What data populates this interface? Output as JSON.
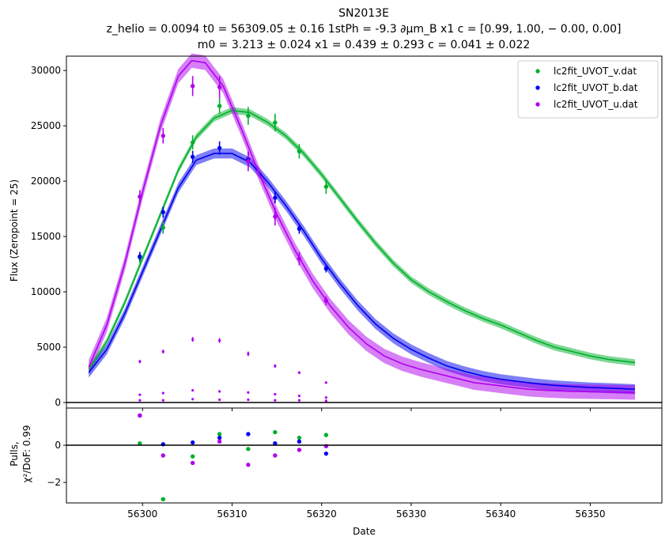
{
  "chart_data": [
    {
      "type": "line",
      "title_lines": [
        "SN2013E",
        "z_helio = 0.0094 t0 = 56309.05 ± 0.16 1stPh = -9.3 ∂μm_B x1 c = [0.99,  1.00,  − 0.00,  0.00]",
        "m0 = 3.213 ± 0.024 x1 = 0.439 ± 0.293 c = 0.041 ± 0.022"
      ],
      "ylabel": "Flux (Zeropoint = 25)",
      "xlim": [
        56291.5,
        56358
      ],
      "ylim": [
        -500,
        31300
      ],
      "yticks": [
        0,
        5000,
        10000,
        15000,
        20000,
        25000,
        30000
      ],
      "yticklabels": [
        "0",
        "5000",
        "10000",
        "15000",
        "20000",
        "25000",
        "30000"
      ],
      "grid": false,
      "legend_position": "top-right",
      "series": [
        {
          "name": "lc2fit_UVOT_v.dat",
          "color": "#00b02b",
          "points": [
            [
              56299.7,
              13100,
              500
            ],
            [
              56302.3,
              15800,
              550
            ],
            [
              56305.6,
              23500,
              650
            ],
            [
              56308.6,
              26800,
              700
            ],
            [
              56311.8,
              25900,
              800
            ],
            [
              56314.8,
              25300,
              800
            ],
            [
              56317.5,
              22700,
              650
            ],
            [
              56320.5,
              19500,
              650
            ]
          ],
          "model": [
            [
              56294,
              3000
            ],
            [
              56296,
              5500
            ],
            [
              56298,
              9000
            ],
            [
              56300,
              13000
            ],
            [
              56302,
              17000
            ],
            [
              56304,
              21000
            ],
            [
              56306,
              24000
            ],
            [
              56308,
              25700
            ],
            [
              56310,
              26400
            ],
            [
              56312,
              26200
            ],
            [
              56314,
              25300
            ],
            [
              56316,
              24100
            ],
            [
              56318,
              22500
            ],
            [
              56320,
              20600
            ],
            [
              56322,
              18500
            ],
            [
              56324,
              16400
            ],
            [
              56326,
              14400
            ],
            [
              56328,
              12600
            ],
            [
              56330,
              11100
            ],
            [
              56332,
              10000
            ],
            [
              56334,
              9100
            ],
            [
              56336,
              8300
            ],
            [
              56338,
              7600
            ],
            [
              56340,
              7000
            ],
            [
              56342,
              6300
            ],
            [
              56344,
              5600
            ],
            [
              56346,
              5000
            ],
            [
              56348,
              4600
            ],
            [
              56350,
              4200
            ],
            [
              56352,
              3900
            ],
            [
              56354,
              3700
            ],
            [
              56355,
              3600
            ]
          ],
          "band": 600
        },
        {
          "name": "lc2fit_UVOT_b.dat",
          "color": "#0000ee",
          "points": [
            [
              56299.7,
              13200,
              400
            ],
            [
              56302.3,
              17200,
              500
            ],
            [
              56305.6,
              22200,
              550
            ],
            [
              56308.6,
              23000,
              600
            ],
            [
              56311.8,
              22000,
              600
            ],
            [
              56314.8,
              18500,
              500
            ],
            [
              56317.5,
              15700,
              450
            ],
            [
              56320.5,
              12100,
              350
            ]
          ],
          "model": [
            [
              56294,
              2700
            ],
            [
              56296,
              4800
            ],
            [
              56298,
              8000
            ],
            [
              56300,
              11800
            ],
            [
              56302,
              15600
            ],
            [
              56304,
              19400
            ],
            [
              56306,
              21900
            ],
            [
              56308,
              22500
            ],
            [
              56310,
              22500
            ],
            [
              56312,
              21700
            ],
            [
              56314,
              19900
            ],
            [
              56316,
              17800
            ],
            [
              56318,
              15500
            ],
            [
              56320,
              13000
            ],
            [
              56322,
              10800
            ],
            [
              56324,
              8800
            ],
            [
              56326,
              7100
            ],
            [
              56328,
              5800
            ],
            [
              56330,
              4800
            ],
            [
              56332,
              4000
            ],
            [
              56334,
              3300
            ],
            [
              56336,
              2800
            ],
            [
              56338,
              2400
            ],
            [
              56340,
              2100
            ],
            [
              56342,
              1900
            ],
            [
              56344,
              1700
            ],
            [
              56346,
              1550
            ],
            [
              56348,
              1450
            ],
            [
              56350,
              1350
            ],
            [
              56352,
              1300
            ],
            [
              56355,
              1200
            ]
          ],
          "band": 900
        },
        {
          "name": "lc2fit_UVOT_u.dat",
          "color": "#b000ee",
          "points": [
            [
              56299.7,
              18600,
              600
            ],
            [
              56302.3,
              24100,
              700
            ],
            [
              56305.6,
              28600,
              900
            ],
            [
              56308.6,
              28500,
              1000
            ],
            [
              56311.8,
              21800,
              900
            ],
            [
              56314.8,
              16800,
              800
            ],
            [
              56317.5,
              13000,
              600
            ],
            [
              56320.5,
              9200,
              400
            ]
          ],
          "model": [
            [
              56294,
              3200
            ],
            [
              56296,
              7000
            ],
            [
              56298,
              12500
            ],
            [
              56300,
              19000
            ],
            [
              56302,
              25000
            ],
            [
              56304,
              29500
            ],
            [
              56305.5,
              30900
            ],
            [
              56307,
              30700
            ],
            [
              56309,
              28600
            ],
            [
              56311,
              24800
            ],
            [
              56313,
              20700
            ],
            [
              56315,
              17000
            ],
            [
              56317,
              13800
            ],
            [
              56319,
              11000
            ],
            [
              56321,
              8700
            ],
            [
              56323,
              6800
            ],
            [
              56325,
              5300
            ],
            [
              56327,
              4200
            ],
            [
              56329,
              3500
            ],
            [
              56331,
              3000
            ],
            [
              56333,
              2600
            ],
            [
              56335,
              2200
            ],
            [
              56337,
              1800
            ],
            [
              56339,
              1600
            ],
            [
              56341,
              1400
            ],
            [
              56343,
              1200
            ],
            [
              56345,
              1100
            ],
            [
              56348,
              1000
            ],
            [
              56352,
              950
            ],
            [
              56355,
              900
            ]
          ],
          "band": 1300
        }
      ],
      "pull_markers": [
        [
          56299.7,
          3700,
          150,
          "#b000ee"
        ],
        [
          56299.7,
          700,
          60,
          "#b000ee"
        ],
        [
          56299.7,
          200,
          40,
          "#b000ee"
        ],
        [
          56302.3,
          4600,
          180,
          "#b000ee"
        ],
        [
          56302.3,
          850,
          60,
          "#b000ee"
        ],
        [
          56302.3,
          200,
          40,
          "#b000ee"
        ],
        [
          56305.6,
          5700,
          220,
          "#b000ee"
        ],
        [
          56305.6,
          1100,
          70,
          "#b000ee"
        ],
        [
          56305.6,
          300,
          40,
          "#b000ee"
        ],
        [
          56308.6,
          5600,
          220,
          "#b000ee"
        ],
        [
          56308.6,
          1000,
          70,
          "#b000ee"
        ],
        [
          56308.6,
          250,
          40,
          "#b000ee"
        ],
        [
          56311.8,
          4400,
          200,
          "#b000ee"
        ],
        [
          56311.8,
          900,
          60,
          "#b000ee"
        ],
        [
          56311.8,
          250,
          40,
          "#b000ee"
        ],
        [
          56314.8,
          3300,
          160,
          "#b000ee"
        ],
        [
          56314.8,
          750,
          60,
          "#b000ee"
        ],
        [
          56314.8,
          200,
          40,
          "#b000ee"
        ],
        [
          56317.5,
          2700,
          130,
          "#b000ee"
        ],
        [
          56317.5,
          600,
          50,
          "#b000ee"
        ],
        [
          56317.5,
          200,
          40,
          "#b000ee"
        ],
        [
          56320.5,
          1800,
          100,
          "#b000ee"
        ],
        [
          56320.5,
          450,
          50,
          "#b000ee"
        ],
        [
          56320.5,
          150,
          40,
          "#b000ee"
        ]
      ]
    },
    {
      "type": "scatter",
      "ylabel_lines": [
        "Pulls,",
        "χ²/DoF: 0.99"
      ],
      "xlabel": "Date",
      "xlim": [
        56291.5,
        56358
      ],
      "ylim": [
        -3.1,
        2.0
      ],
      "yticks": [
        -2,
        0
      ],
      "yticklabels": [
        "−2",
        "0"
      ],
      "xticks": [
        56300,
        56310,
        56320,
        56330,
        56340,
        56350
      ],
      "xticklabels": [
        "56300",
        "56310",
        "56320",
        "56330",
        "56340",
        "56350"
      ],
      "series": [
        {
          "color": "#00b02b",
          "x": [
            56299.7,
            56302.3,
            56305.6,
            56308.6,
            56311.8,
            56314.8,
            56317.5,
            56320.5
          ],
          "y": [
            0.1,
            -2.9,
            -0.6,
            0.6,
            -0.2,
            0.7,
            0.4,
            0.55
          ]
        },
        {
          "color": "#0000ee",
          "x": [
            56299.7,
            56302.3,
            56305.6,
            56308.6,
            56311.8,
            56314.8,
            56317.5,
            56320.5
          ],
          "y": [
            1.6,
            0.05,
            0.15,
            0.4,
            0.6,
            0.1,
            0.2,
            -0.45
          ]
        },
        {
          "color": "#b000ee",
          "x": [
            56299.7,
            56302.3,
            56305.6,
            56308.6,
            56311.8,
            56314.8,
            56317.5,
            56320.5
          ],
          "y": [
            1.6,
            -0.55,
            -0.95,
            0.2,
            -1.05,
            -0.55,
            -0.25,
            -0.05
          ]
        }
      ]
    }
  ]
}
